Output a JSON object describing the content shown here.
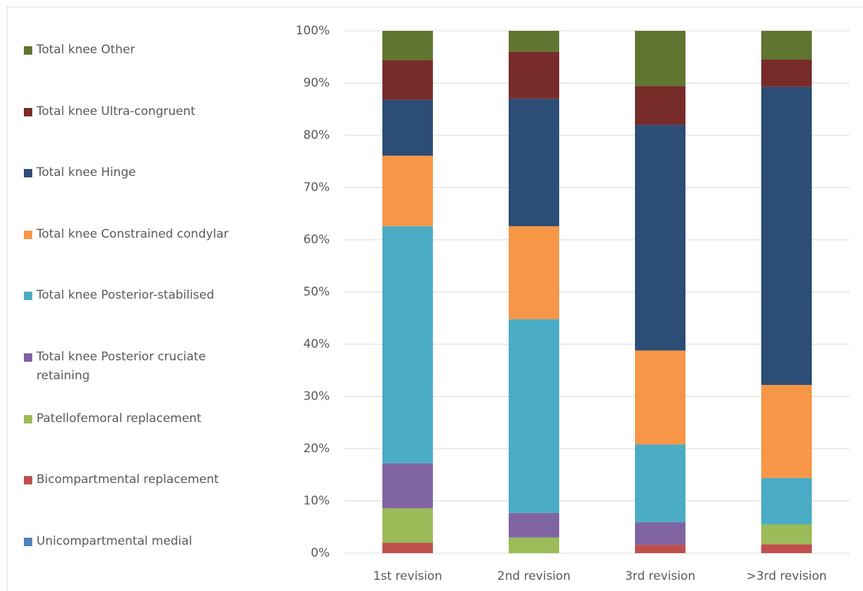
{
  "chart_data": {
    "type": "stacked_bar",
    "categories": [
      "1st revision",
      "2nd revision",
      "3rd revision",
      ">3rd revision"
    ],
    "series": [
      {
        "name": "Unicompartmental medial",
        "color": "#4f81bd",
        "values": [
          0,
          0,
          0,
          0
        ]
      },
      {
        "name": "Bicompartmental replacement",
        "color": "#c0504d",
        "values": [
          2.0,
          0,
          1.6,
          1.7
        ]
      },
      {
        "name": "Patellofemoral replacement",
        "color": "#9bbb59",
        "values": [
          6.6,
          3.0,
          0,
          3.8
        ]
      },
      {
        "name": "Total knee Posterior cruciate retaining",
        "color": "#8064a2",
        "values": [
          8.6,
          4.7,
          4.3,
          0
        ]
      },
      {
        "name": "Total knee Posterior-stabilised",
        "color": "#4bacc6",
        "values": [
          45.4,
          37.1,
          14.9,
          8.9
        ]
      },
      {
        "name": "Total knee Constrained condylar",
        "color": "#f79646",
        "values": [
          13.5,
          17.8,
          18.0,
          17.8
        ]
      },
      {
        "name": "Total knee Hinge",
        "color": "#2c4d75",
        "values": [
          10.7,
          24.4,
          43.2,
          57.1
        ]
      },
      {
        "name": "Total knee Ultra-congruent",
        "color": "#772c2a",
        "values": [
          7.6,
          9.0,
          7.4,
          5.2
        ]
      },
      {
        "name": "Total knee Other",
        "color": "#5f7530",
        "values": [
          5.6,
          4.0,
          10.6,
          5.5
        ]
      }
    ],
    "ylim": [
      0,
      100
    ],
    "yticks": [
      {
        "value": 0,
        "label": "0%"
      },
      {
        "value": 10,
        "label": "10%"
      },
      {
        "value": 20,
        "label": "20%"
      },
      {
        "value": 30,
        "label": "30%"
      },
      {
        "value": 40,
        "label": "40%"
      },
      {
        "value": 50,
        "label": "50%"
      },
      {
        "value": 60,
        "label": "60%"
      },
      {
        "value": 70,
        "label": "70%"
      },
      {
        "value": 80,
        "label": "80%"
      },
      {
        "value": 90,
        "label": "90%"
      },
      {
        "value": 100,
        "label": "100%"
      }
    ],
    "grid": true
  }
}
